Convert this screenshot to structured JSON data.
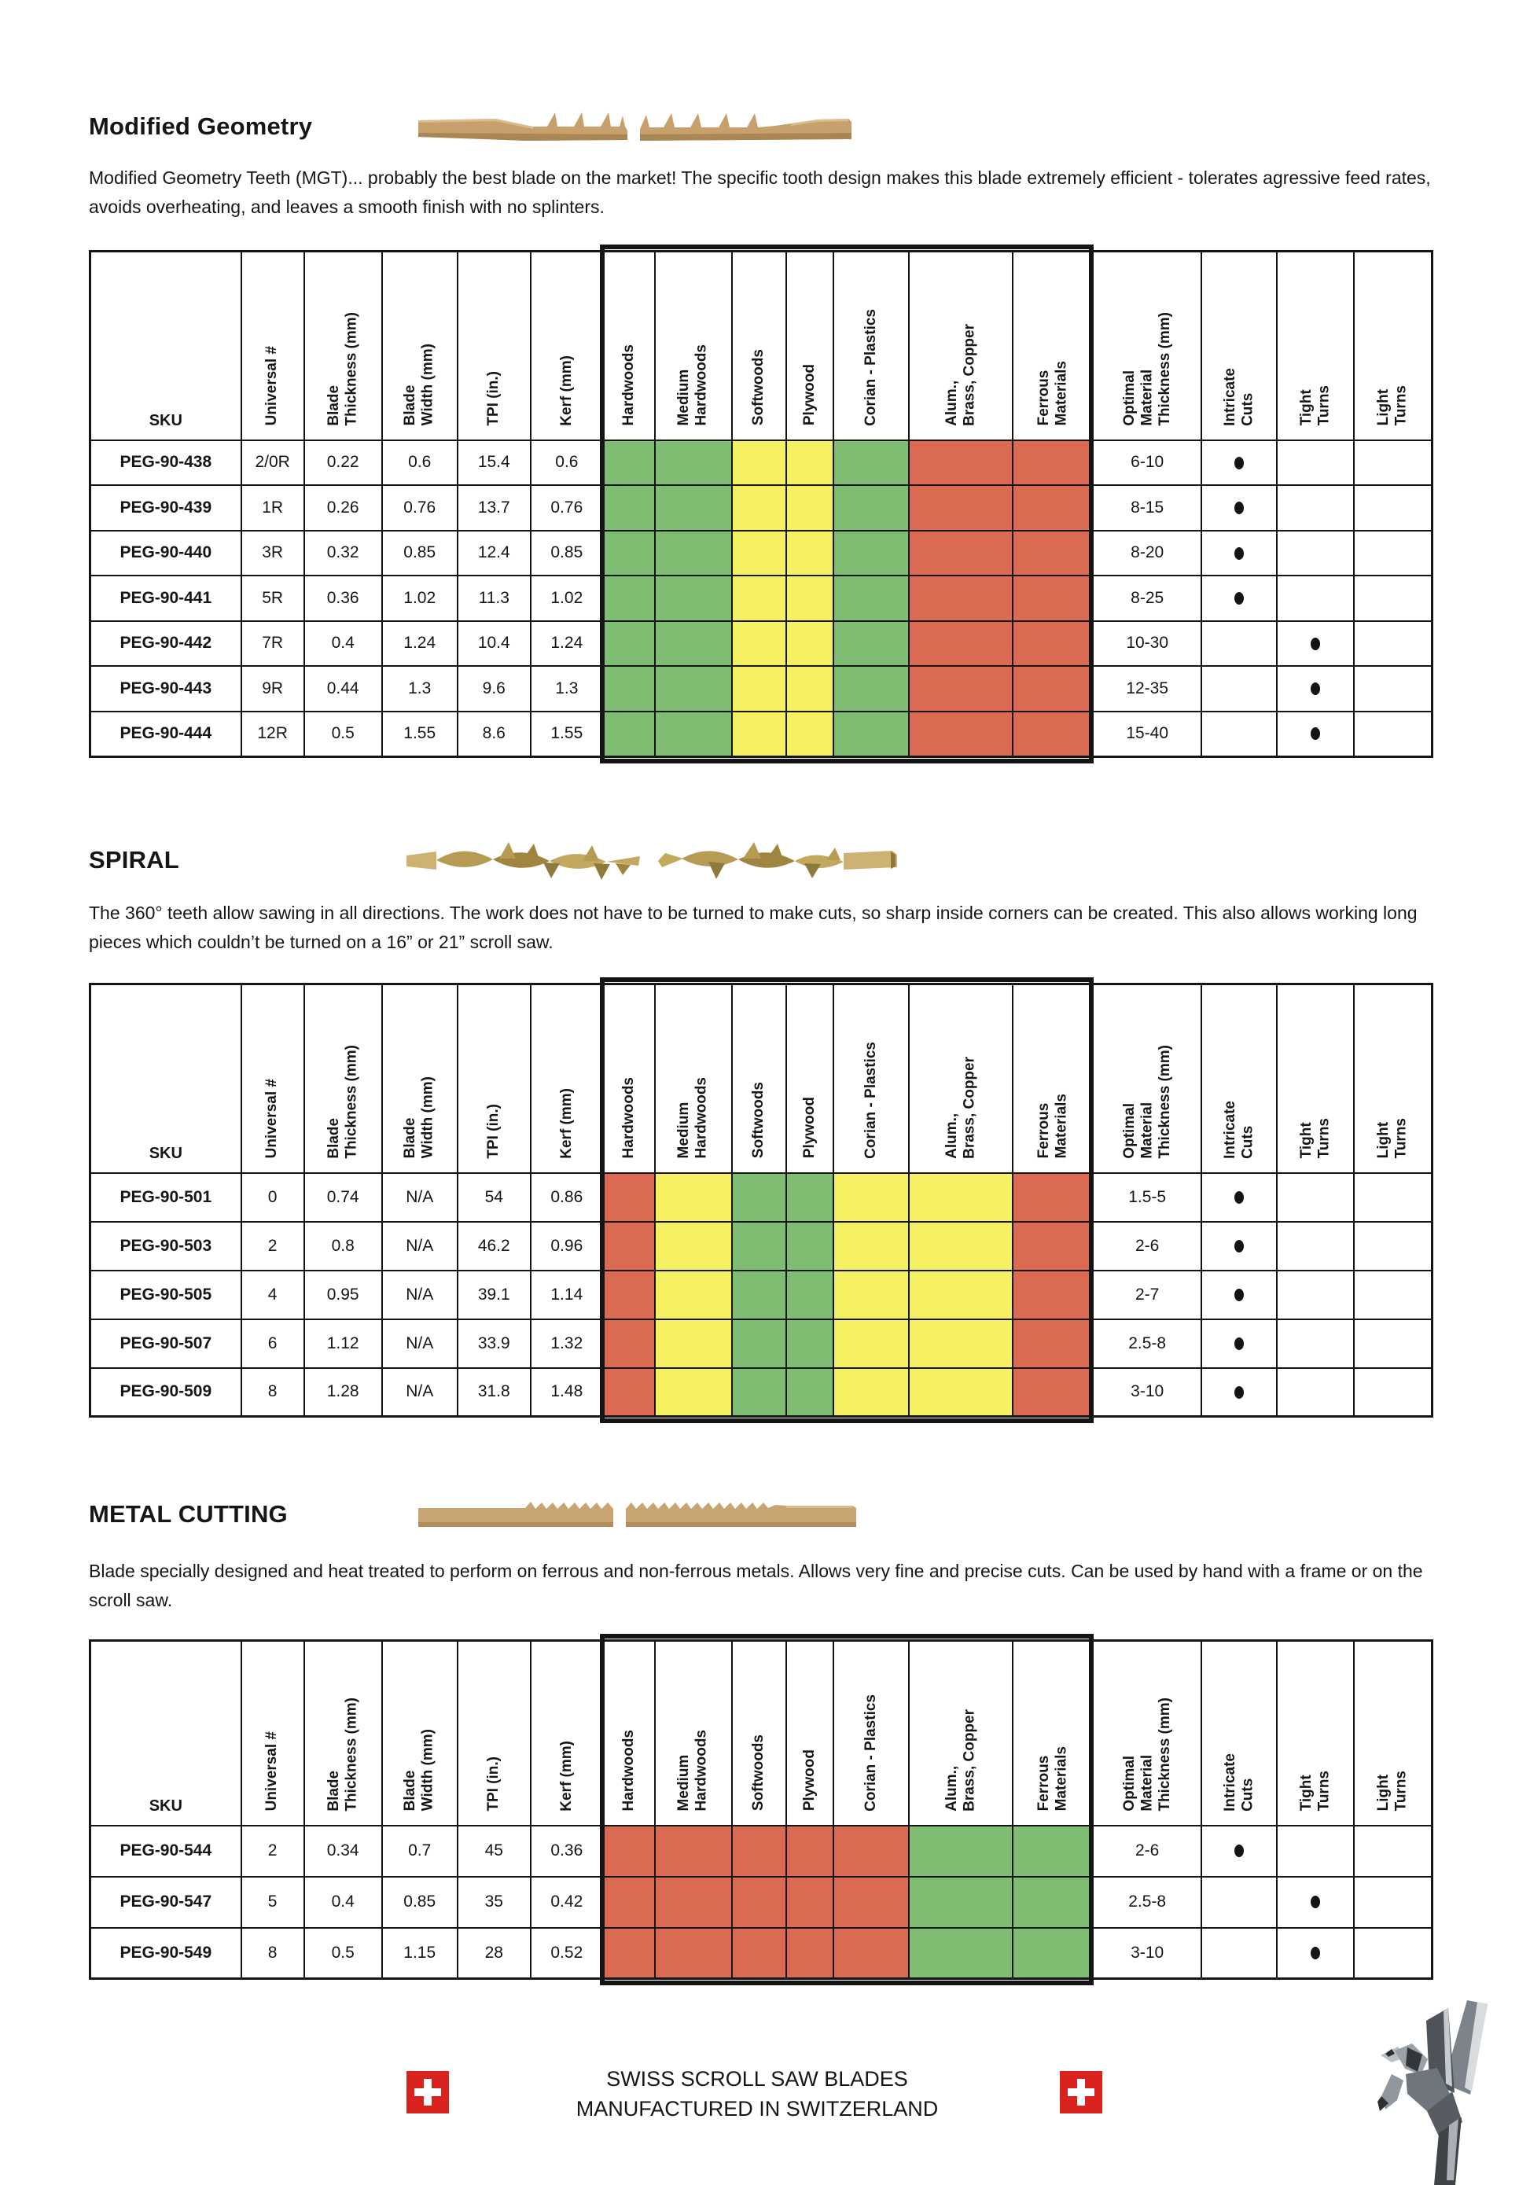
{
  "rating_colors": {
    "good": "#7fbe72",
    "ok": "#f6f163",
    "bad": "#da6a52"
  },
  "rating_legend": {
    "good": "suitable",
    "ok": "acceptable",
    "bad": "not-recommended"
  },
  "columns": [
    {
      "id": "sku",
      "label": "SKU",
      "type": "text",
      "width": 192,
      "rot": false
    },
    {
      "id": "universal",
      "label": "Universal #",
      "type": "text",
      "width": 80,
      "rot": true
    },
    {
      "id": "thickness",
      "label": "Blade\nThickness (mm)",
      "type": "text",
      "width": 99,
      "rot": true
    },
    {
      "id": "width",
      "label": "Blade\nWidth (mm)",
      "type": "text",
      "width": 96,
      "rot": true
    },
    {
      "id": "tpi",
      "label": "TPI (in.)",
      "type": "text",
      "width": 93,
      "rot": true
    },
    {
      "id": "kerf",
      "label": "Kerf (mm)",
      "type": "text",
      "width": 92,
      "rot": true
    },
    {
      "id": "hardwoods",
      "label": "Hardwoods",
      "type": "material",
      "width": 66,
      "rot": true
    },
    {
      "id": "medium_hardwoods",
      "label": "Medium\nHardwoods",
      "type": "material",
      "width": 98,
      "rot": true
    },
    {
      "id": "softwoods",
      "label": "Softwoods",
      "type": "material",
      "width": 69,
      "rot": true
    },
    {
      "id": "plywood",
      "label": "Plywood",
      "type": "material",
      "width": 60,
      "rot": true
    },
    {
      "id": "corian_plastics",
      "label": "Corian  - Plastics",
      "type": "material",
      "width": 96,
      "rot": true
    },
    {
      "id": "alum_brass_copper",
      "label": "Alum.,\nBrass, Copper",
      "type": "material",
      "width": 132,
      "rot": true
    },
    {
      "id": "ferrous",
      "label": "Ferrous\nMaterials",
      "type": "material",
      "width": 102,
      "rot": true
    },
    {
      "id": "optimal",
      "label": "Optimal\nMaterial\nThickness (mm)",
      "type": "text",
      "width": 138,
      "rot": true
    },
    {
      "id": "intricate",
      "label": "Intricate\nCuts",
      "type": "dot",
      "width": 96,
      "rot": true
    },
    {
      "id": "tight",
      "label": "Tight\nTurns",
      "type": "dot",
      "width": 98,
      "rot": true
    },
    {
      "id": "light",
      "label": "Light\nTurns",
      "type": "dot",
      "width": 99,
      "rot": true
    }
  ],
  "sections": [
    {
      "id": "modified-geometry",
      "title": "Modified Geometry",
      "description": "Modified Geometry Teeth (MGT)... probably the best blade on the market! The specific tooth design makes this blade extremely efficient - tolerates agressive feed rates, avoids overheating, and leaves a smooth finish with no splinters.",
      "materials": {
        "hardwoods": "good",
        "medium_hardwoods": "good",
        "softwoods": "ok",
        "plywood": "ok",
        "corian_plastics": "good",
        "alum_brass_copper": "bad",
        "ferrous": "bad"
      },
      "rows": [
        {
          "sku": "PEG-90-438",
          "universal": "2/0R",
          "thickness": "0.22",
          "width": "0.6",
          "tpi": "15.4",
          "kerf": "0.6",
          "optimal": "6-10",
          "intricate": true,
          "tight": false,
          "light": false
        },
        {
          "sku": "PEG-90-439",
          "universal": "1R",
          "thickness": "0.26",
          "width": "0.76",
          "tpi": "13.7",
          "kerf": "0.76",
          "optimal": "8-15",
          "intricate": true,
          "tight": false,
          "light": false
        },
        {
          "sku": "PEG-90-440",
          "universal": "3R",
          "thickness": "0.32",
          "width": "0.85",
          "tpi": "12.4",
          "kerf": "0.85",
          "optimal": "8-20",
          "intricate": true,
          "tight": false,
          "light": false
        },
        {
          "sku": "PEG-90-441",
          "universal": "5R",
          "thickness": "0.36",
          "width": "1.02",
          "tpi": "11.3",
          "kerf": "1.02",
          "optimal": "8-25",
          "intricate": true,
          "tight": false,
          "light": false
        },
        {
          "sku": "PEG-90-442",
          "universal": "7R",
          "thickness": "0.4",
          "width": "1.24",
          "tpi": "10.4",
          "kerf": "1.24",
          "optimal": "10-30",
          "intricate": false,
          "tight": true,
          "light": false
        },
        {
          "sku": "PEG-90-443",
          "universal": "9R",
          "thickness": "0.44",
          "width": "1.3",
          "tpi": "9.6",
          "kerf": "1.3",
          "optimal": "12-35",
          "intricate": false,
          "tight": true,
          "light": false
        },
        {
          "sku": "PEG-90-444",
          "universal": "12R",
          "thickness": "0.5",
          "width": "1.55",
          "tpi": "8.6",
          "kerf": "1.55",
          "optimal": "15-40",
          "intricate": false,
          "tight": true,
          "light": false
        }
      ]
    },
    {
      "id": "spiral",
      "title": "SPIRAL",
      "description": "The 360° teeth allow sawing in all directions. The work does not have to be turned to make cuts, so sharp inside corners can be created. This also allows working long pieces which couldn’t be turned on a 16” or 21” scroll saw.",
      "materials": {
        "hardwoods": "bad",
        "medium_hardwoods": "ok",
        "softwoods": "good",
        "plywood": "good",
        "corian_plastics": "ok",
        "alum_brass_copper": "ok",
        "ferrous": "bad"
      },
      "rows": [
        {
          "sku": "PEG-90-501",
          "universal": "0",
          "thickness": "0.74",
          "width": "N/A",
          "tpi": "54",
          "kerf": "0.86",
          "optimal": "1.5-5",
          "intricate": true,
          "tight": false,
          "light": false
        },
        {
          "sku": "PEG-90-503",
          "universal": "2",
          "thickness": "0.8",
          "width": "N/A",
          "tpi": "46.2",
          "kerf": "0.96",
          "optimal": "2-6",
          "intricate": true,
          "tight": false,
          "light": false
        },
        {
          "sku": "PEG-90-505",
          "universal": "4",
          "thickness": "0.95",
          "width": "N/A",
          "tpi": "39.1",
          "kerf": "1.14",
          "optimal": "2-7",
          "intricate": true,
          "tight": false,
          "light": false
        },
        {
          "sku": "PEG-90-507",
          "universal": "6",
          "thickness": "1.12",
          "width": "N/A",
          "tpi": "33.9",
          "kerf": "1.32",
          "optimal": "2.5-8",
          "intricate": true,
          "tight": false,
          "light": false
        },
        {
          "sku": "PEG-90-509",
          "universal": "8",
          "thickness": "1.28",
          "width": "N/A",
          "tpi": "31.8",
          "kerf": "1.48",
          "optimal": "3-10",
          "intricate": true,
          "tight": false,
          "light": false
        }
      ]
    },
    {
      "id": "metal-cutting",
      "title": "METAL CUTTING",
      "description": "Blade specially designed and heat treated to perform on ferrous and non-ferrous metals. Allows very fine and precise cuts. Can be used by hand with a frame or on the scroll saw.",
      "materials": {
        "hardwoods": "bad",
        "medium_hardwoods": "bad",
        "softwoods": "bad",
        "plywood": "bad",
        "corian_plastics": "bad",
        "alum_brass_copper": "good",
        "ferrous": "good"
      },
      "rows": [
        {
          "sku": "PEG-90-544",
          "universal": "2",
          "thickness": "0.34",
          "width": "0.7",
          "tpi": "45",
          "kerf": "0.36",
          "optimal": "2-6",
          "intricate": true,
          "tight": false,
          "light": false
        },
        {
          "sku": "PEG-90-547",
          "universal": "5",
          "thickness": "0.4",
          "width": "0.85",
          "tpi": "35",
          "kerf": "0.42",
          "optimal": "2.5-8",
          "intricate": false,
          "tight": true,
          "light": false
        },
        {
          "sku": "PEG-90-549",
          "universal": "8",
          "thickness": "0.5",
          "width": "1.15",
          "tpi": "28",
          "kerf": "0.52",
          "optimal": "3-10",
          "intricate": false,
          "tight": true,
          "light": false
        }
      ]
    }
  ],
  "footer": {
    "line1": "SWISS SCROLL SAW BLADES",
    "line2": "MANUFACTURED IN SWITZERLAND",
    "flag_color": "#d8231f"
  }
}
